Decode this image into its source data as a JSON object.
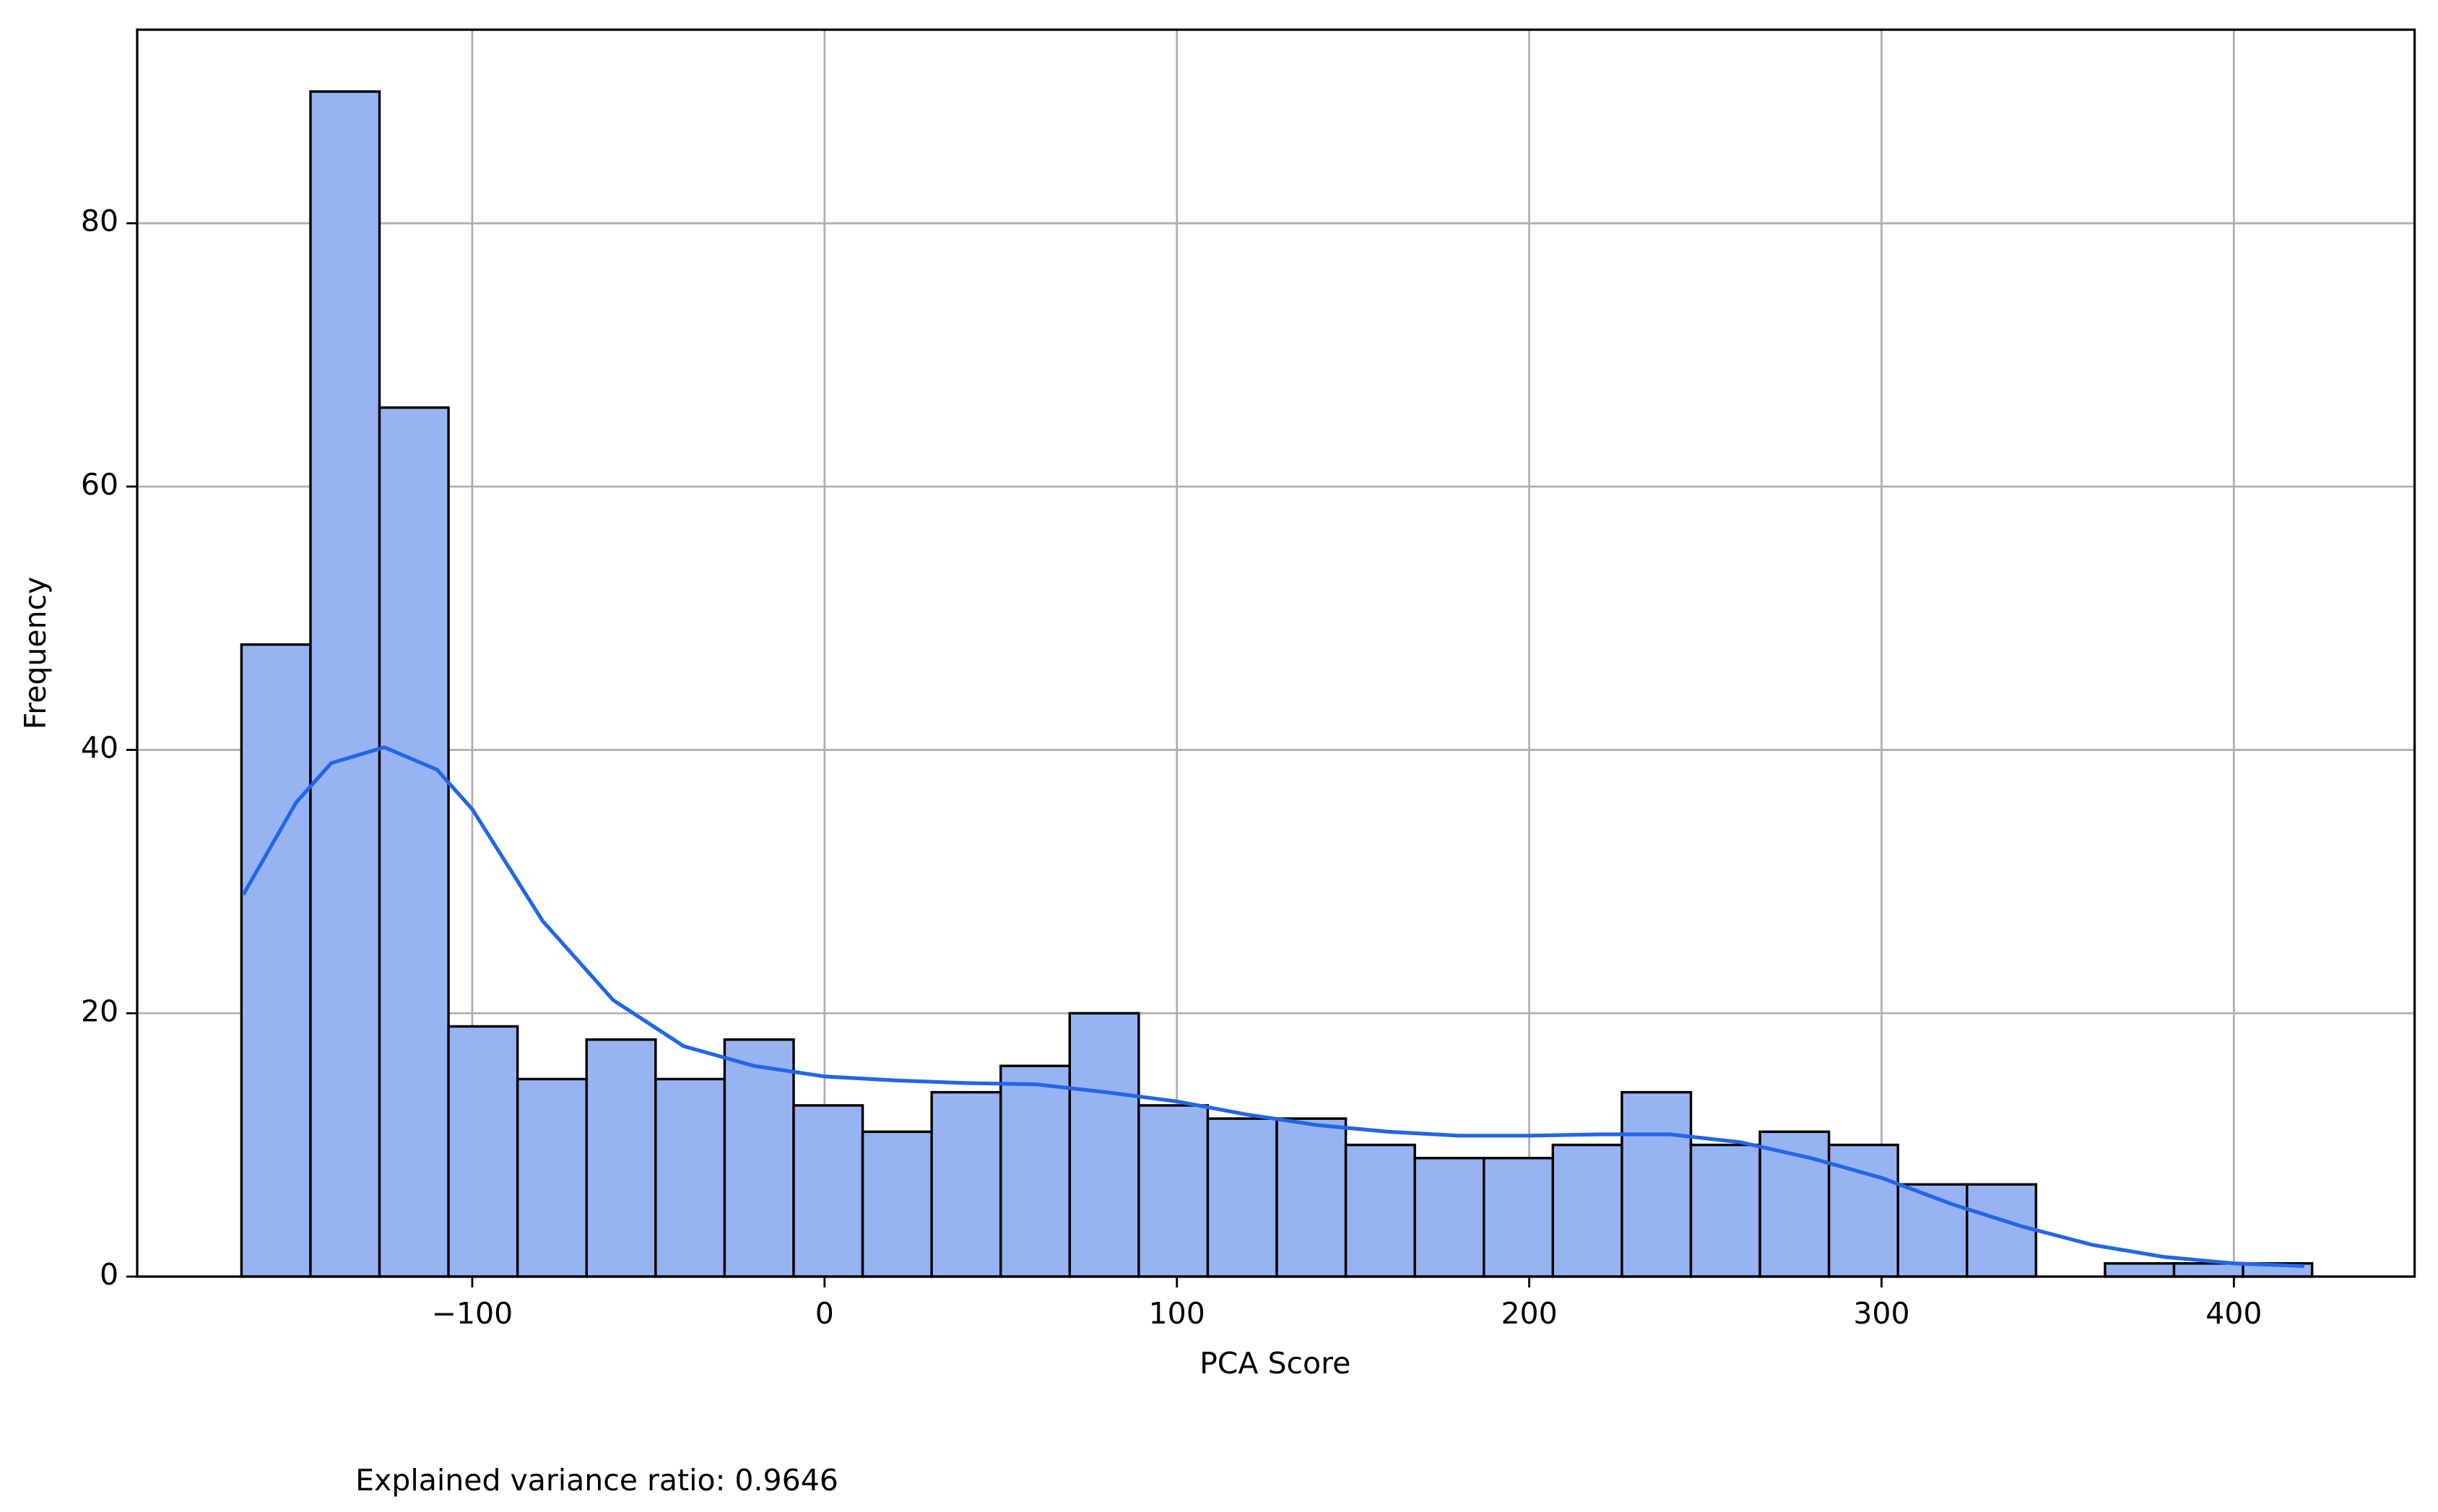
{
  "chart_data": {
    "type": "histogram",
    "x_label": "PCA Score",
    "y_label": "Frequency",
    "annotation": "Explained variance ratio: 0.9646",
    "bins": [
      -165.5,
      -145.91,
      -126.32,
      -106.73,
      -87.14,
      -67.55,
      -47.96,
      -28.37,
      -8.78,
      10.81,
      30.4,
      49.99,
      69.58,
      89.17,
      108.76,
      128.35,
      147.94,
      167.53,
      187.12,
      206.71,
      226.3,
      245.89,
      265.48,
      285.07,
      304.66,
      324.25,
      343.84,
      363.43,
      383.02,
      402.61,
      422.2
    ],
    "counts": [
      48,
      90,
      66,
      19,
      15,
      18,
      15,
      18,
      13,
      11,
      14,
      16,
      20,
      13,
      12,
      12,
      10,
      9,
      9,
      10,
      14,
      10,
      11,
      10,
      7,
      7,
      0,
      1,
      1,
      1
    ],
    "color": "#97b3f2",
    "edgecolor": "#000000",
    "kde": {
      "color": "#2266e8",
      "x": [
        -165,
        -150,
        -140,
        -125,
        -110,
        -100,
        -80,
        -60,
        -40,
        -20,
        0,
        20,
        40,
        60,
        80,
        100,
        120,
        140,
        160,
        180,
        200,
        220,
        240,
        260,
        280,
        300,
        320,
        340,
        360,
        380,
        400,
        420
      ],
      "values": [
        29,
        36,
        39,
        40.2,
        38.5,
        35.5,
        27,
        21,
        17.5,
        16,
        15.2,
        14.9,
        14.7,
        14.6,
        14,
        13.3,
        12.3,
        11.5,
        11,
        10.7,
        10.7,
        10.8,
        10.8,
        10.2,
        9,
        7.5,
        5.5,
        3.8,
        2.4,
        1.5,
        1,
        0.8
      ]
    },
    "xlim": [
      -195.1,
      451.3
    ],
    "ylim": [
      0,
      94.7
    ],
    "xticks": [
      {
        "value": -100,
        "label": "−100"
      },
      0,
      100,
      200,
      300,
      400
    ],
    "yticks": [
      0,
      20,
      40,
      60,
      80
    ],
    "grid": true
  }
}
